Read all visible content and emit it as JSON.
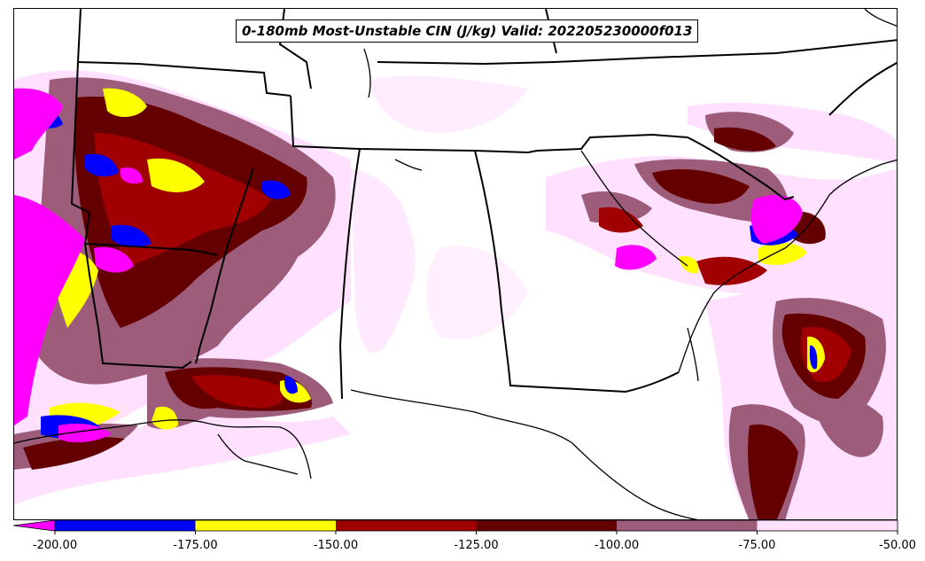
{
  "title": "0-180mb Most-Unstable CIN (J/kg) Valid: 202205230000f013",
  "colorbar": {
    "ticks": [
      "-200.00",
      "-175.00",
      "-150.00",
      "-125.00",
      "-100.00",
      "-75.00",
      "-50.00"
    ],
    "colors": [
      "#ff00ff",
      "#0000ff",
      "#ffff00",
      "#a00000",
      "#640000",
      "#9c5c7a",
      "#ffe0ff"
    ],
    "extend": "min"
  },
  "map": {
    "region": "Southeastern United States",
    "boundaries": "state lines and coastlines (black)"
  }
}
